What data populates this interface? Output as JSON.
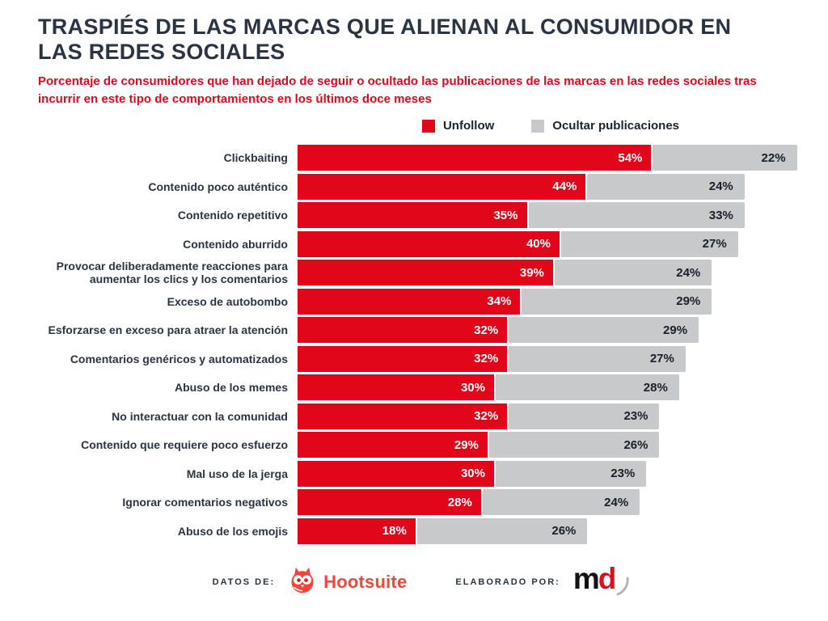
{
  "title": "TRASPIÉS DE LAS MARCAS QUE ALIENAN AL CONSUMIDOR EN LAS REDES SOCIALES",
  "subtitle": "Porcentaje de consumidores que han dejado de seguir o ocultado las publicaciones de las marcas en las redes sociales tras incurrir en este tipo de comportamientos en los últimos doce meses",
  "legend": [
    {
      "label": "Unfollow",
      "color": "#e1061a"
    },
    {
      "label": "Ocultar publicaciones",
      "color": "#c8c9ca"
    }
  ],
  "chart_data": {
    "type": "bar",
    "orientation": "horizontal",
    "stacked": true,
    "value_suffix": "%",
    "grid": false,
    "legend_position": "top-center",
    "categories": [
      "Clickbaiting",
      "Contenido poco auténtico",
      "Contenido repetitivo",
      "Contenido aburrido",
      "Provocar deliberadamente reacciones para aumentar los clics y los comentarios",
      "Exceso de autobombo",
      "Esforzarse en exceso para atraer la atención",
      "Comentarios genéricos y automatizados",
      "Abuso de los memes",
      "No interactuar con la comunidad",
      "Contenido que requiere poco esfuerzo",
      "Mal uso de la jerga",
      "Ignorar comentarios negativos",
      "Abuso de los emojis"
    ],
    "series": [
      {
        "name": "Unfollow",
        "color": "#e1061a",
        "values": [
          54,
          44,
          35,
          40,
          39,
          34,
          32,
          32,
          30,
          32,
          29,
          30,
          28,
          18
        ]
      },
      {
        "name": "Ocultar publicaciones",
        "color": "#c8c9ca",
        "values": [
          22,
          24,
          33,
          27,
          24,
          29,
          29,
          27,
          28,
          23,
          26,
          23,
          24,
          26
        ]
      }
    ],
    "xlim": [
      0,
      76
    ]
  },
  "footer": {
    "datos_de_label": "DATOS DE:",
    "hootsuite_wordmark": "Hootsuite",
    "elaborado_por_label": "ELABORADO POR:",
    "md_m": "m",
    "md_d": "d"
  },
  "colors": {
    "unfollow_red": "#e1061a",
    "hide_gray": "#c8c9ca",
    "title_dark": "#2a3442",
    "subtitle_red": "#e1061a",
    "hootsuite_coral": "#f7453c",
    "md_black": "#121212",
    "md_red": "#d8121f",
    "md_swoosh_gray": "#b5b5b5"
  }
}
